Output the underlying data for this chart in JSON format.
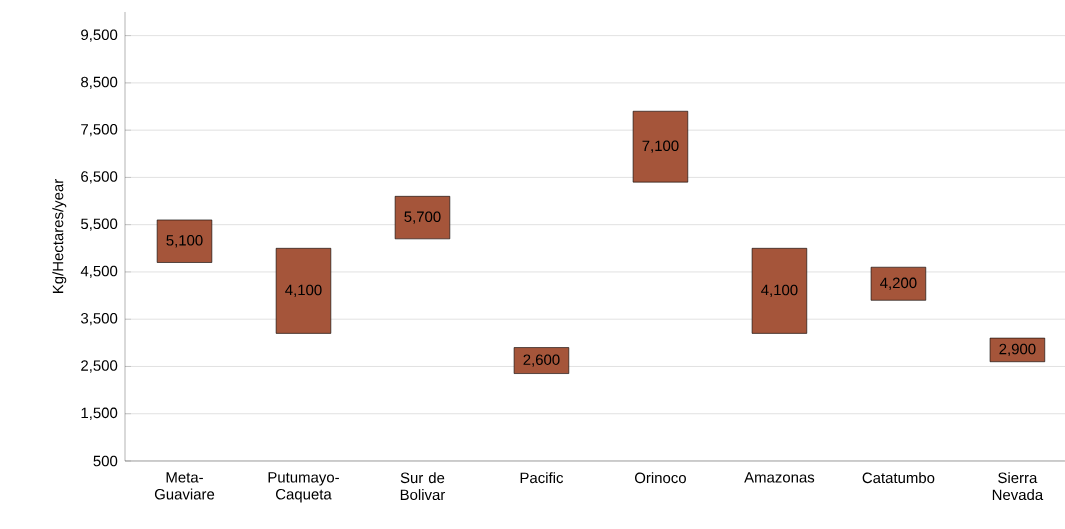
{
  "chart_data": {
    "type": "bar",
    "ylabel": "Kg/Hectares/year",
    "categories": [
      "Meta-Guaviare",
      "Putumayo-Caqueta",
      "Sur de Bolivar",
      "Pacific",
      "Orinoco",
      "Amazonas",
      "Catatumbo",
      "Sierra Nevada"
    ],
    "base": [
      4700,
      3200,
      5200,
      2350,
      6400,
      3200,
      3900,
      2600
    ],
    "values": [
      900,
      1800,
      900,
      550,
      1500,
      1800,
      700,
      500
    ],
    "color": "#a5553a",
    "ylim": [
      500,
      10000
    ],
    "yticks": [
      {
        "value": 500,
        "label": "500"
      },
      {
        "value": 1500,
        "label": "1,500"
      },
      {
        "value": 2500,
        "label": "2,500"
      },
      {
        "value": 3500,
        "label": "3,500"
      },
      {
        "value": 4500,
        "label": "4,500"
      },
      {
        "value": 5500,
        "label": "5,500"
      },
      {
        "value": 6500,
        "label": "6,500"
      },
      {
        "value": 7500,
        "label": "7,500"
      },
      {
        "value": 8500,
        "label": "8,500"
      },
      {
        "value": 9500,
        "label": "9,500"
      }
    ],
    "grid": "y",
    "annotations": [
      "5,100",
      "4,100",
      "5,700",
      "2,600",
      "7,100",
      "4,100",
      "4,200",
      "2,900"
    ]
  }
}
